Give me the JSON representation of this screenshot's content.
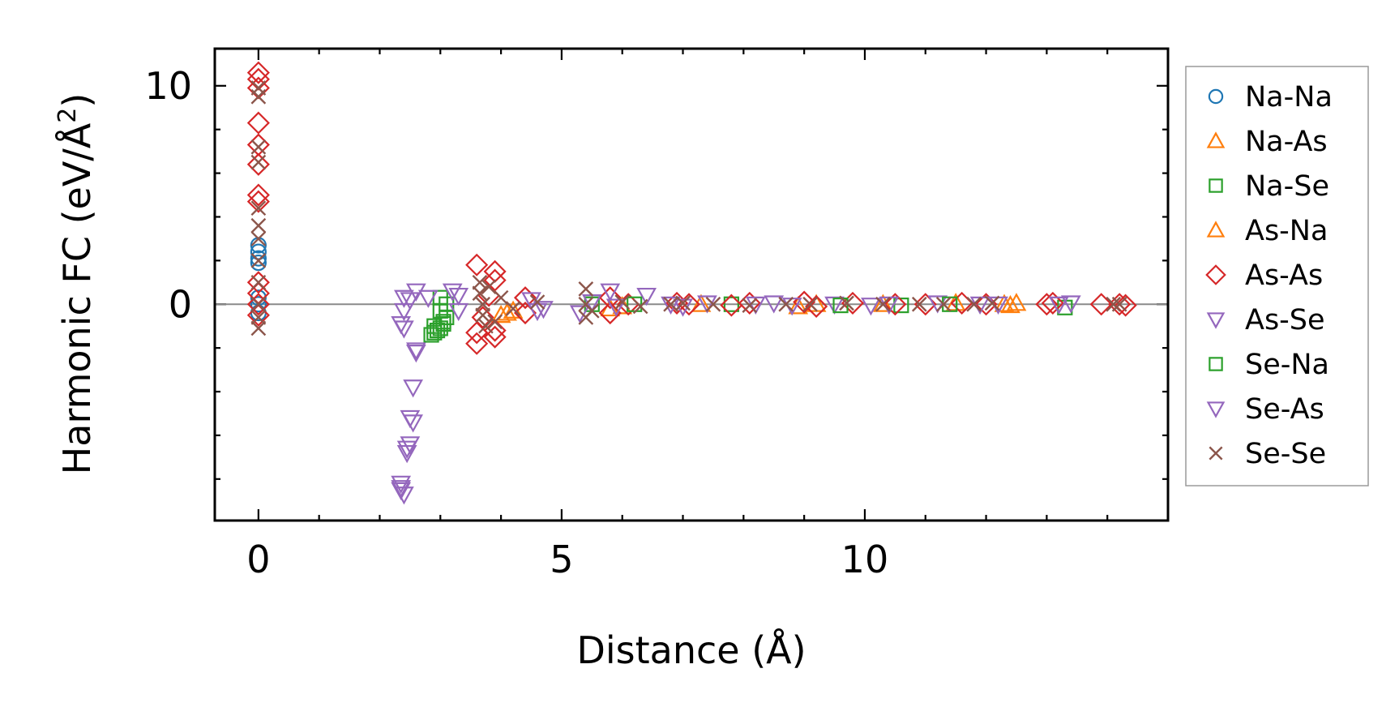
{
  "chart_data": {
    "type": "scatter",
    "title": "",
    "xlabel": "Distance (Å)",
    "ylabel_main": "Harmonic FC (eV/Å",
    "ylabel_sup": "2",
    "ylabel_close": ")",
    "xlim": [
      -0.72,
      15.0
    ],
    "ylim": [
      -9.9,
      11.7
    ],
    "x_ticks": [
      {
        "value": 0,
        "label": "0"
      },
      {
        "value": 5,
        "label": "5"
      },
      {
        "value": 10,
        "label": "10"
      }
    ],
    "y_ticks": [
      {
        "value": 0,
        "label": "0"
      },
      {
        "value": 10,
        "label": "10"
      }
    ],
    "x_minor_step": 1,
    "y_minor_step": 2,
    "zero_line": true,
    "legend_position": "outside-right",
    "grid": false,
    "series": [
      {
        "name": "Na-Na",
        "marker": "circle",
        "color": "#1f77b4",
        "points": [
          [
            0,
            2.7
          ],
          [
            0,
            2.4
          ],
          [
            0,
            2.1
          ],
          [
            0,
            1.9
          ],
          [
            0,
            0.0
          ],
          [
            0,
            0.3
          ],
          [
            0,
            -0.4
          ]
        ]
      },
      {
        "name": "Na-As",
        "marker": "triangle-up",
        "color": "#ff7f0e",
        "points": [
          [
            4.0,
            -0.5
          ],
          [
            4.2,
            -0.3
          ],
          [
            5.8,
            -0.2
          ],
          [
            7.3,
            0.0
          ],
          [
            8.9,
            -0.1
          ],
          [
            10.3,
            0.0
          ],
          [
            12.4,
            -0.05
          ],
          [
            12.5,
            0.05
          ]
        ]
      },
      {
        "name": "Na-Se",
        "marker": "square",
        "color": "#2ca02c",
        "points": [
          [
            2.85,
            -1.4
          ],
          [
            2.9,
            -1.3
          ],
          [
            2.95,
            -1.2
          ],
          [
            3.0,
            -1.1
          ],
          [
            3.05,
            -0.9
          ],
          [
            3.1,
            -0.6
          ],
          [
            3.0,
            -0.3
          ],
          [
            3.1,
            0.0
          ],
          [
            3.0,
            0.3
          ],
          [
            5.5,
            0.0
          ],
          [
            7.8,
            0.0
          ],
          [
            10.6,
            -0.05
          ],
          [
            13.3,
            -0.15
          ]
        ]
      },
      {
        "name": "As-Na",
        "marker": "triangle-up",
        "color": "#ff7f0e",
        "points": [
          [
            4.1,
            -0.4
          ],
          [
            6.0,
            -0.1
          ],
          [
            9.2,
            0.0
          ],
          [
            11.5,
            0.05
          ],
          [
            12.3,
            0.0
          ]
        ]
      },
      {
        "name": "As-As",
        "marker": "diamond",
        "color": "#d62728",
        "points": [
          [
            0,
            10.6
          ],
          [
            0,
            10.3
          ],
          [
            0,
            9.9
          ],
          [
            0,
            8.3
          ],
          [
            0,
            7.3
          ],
          [
            0,
            6.4
          ],
          [
            0,
            5.0
          ],
          [
            0,
            4.7
          ],
          [
            0,
            1.0
          ],
          [
            0,
            0.5
          ],
          [
            0,
            0.0
          ],
          [
            0,
            -0.5
          ],
          [
            3.6,
            1.8
          ],
          [
            3.6,
            -1.3
          ],
          [
            3.6,
            -1.8
          ],
          [
            3.9,
            1.5
          ],
          [
            3.9,
            1.1
          ],
          [
            3.9,
            -1.2
          ],
          [
            3.9,
            -1.5
          ],
          [
            3.8,
            0.4
          ],
          [
            3.7,
            -0.6
          ],
          [
            4.4,
            0.3
          ],
          [
            4.4,
            -0.4
          ],
          [
            5.8,
            0.3
          ],
          [
            5.8,
            -0.4
          ],
          [
            6.1,
            0.0
          ],
          [
            6.9,
            0.05
          ],
          [
            7.1,
            0.0
          ],
          [
            7.8,
            -0.05
          ],
          [
            8.1,
            0.05
          ],
          [
            9.0,
            0.1
          ],
          [
            9.2,
            -0.1
          ],
          [
            9.8,
            0.05
          ],
          [
            10.5,
            0.0
          ],
          [
            11.0,
            0.0
          ],
          [
            11.6,
            0.05
          ],
          [
            12.0,
            0.0
          ],
          [
            13.0,
            0.0
          ],
          [
            13.1,
            0.05
          ],
          [
            13.9,
            0.0
          ],
          [
            14.2,
            0.0
          ],
          [
            14.3,
            -0.05
          ]
        ]
      },
      {
        "name": "As-Se",
        "marker": "triangle-down",
        "color": "#9467bd",
        "points": [
          [
            2.35,
            -8.2
          ],
          [
            2.35,
            -8.5
          ],
          [
            2.4,
            -8.7
          ],
          [
            2.45,
            -6.6
          ],
          [
            2.5,
            -6.4
          ],
          [
            2.55,
            -5.4
          ],
          [
            2.55,
            -3.8
          ],
          [
            2.6,
            -2.1
          ],
          [
            2.4,
            -1.1
          ],
          [
            2.4,
            -0.3
          ],
          [
            2.4,
            0.3
          ],
          [
            2.6,
            0.6
          ],
          [
            2.8,
            0.3
          ],
          [
            3.2,
            0.6
          ],
          [
            3.3,
            -0.3
          ],
          [
            4.5,
            0.2
          ],
          [
            4.7,
            -0.2
          ],
          [
            5.3,
            -0.4
          ],
          [
            5.8,
            0.6
          ],
          [
            5.9,
            -0.1
          ],
          [
            6.4,
            0.4
          ],
          [
            7.0,
            -0.1
          ],
          [
            7.4,
            0.05
          ],
          [
            8.2,
            0.0
          ],
          [
            8.8,
            -0.05
          ],
          [
            9.5,
            0.0
          ],
          [
            10.4,
            0.0
          ],
          [
            11.2,
            0.05
          ],
          [
            11.9,
            0.0
          ],
          [
            13.2,
            0.0
          ],
          [
            13.4,
            0.05
          ]
        ]
      },
      {
        "name": "Se-Na",
        "marker": "square",
        "color": "#2ca02c",
        "points": [
          [
            2.9,
            -1.0
          ],
          [
            3.05,
            -0.8
          ],
          [
            6.2,
            0.0
          ],
          [
            9.6,
            -0.05
          ],
          [
            11.4,
            0.0
          ]
        ]
      },
      {
        "name": "Se-As",
        "marker": "triangle-down",
        "color": "#9467bd",
        "points": [
          [
            2.35,
            -8.4
          ],
          [
            2.45,
            -6.8
          ],
          [
            2.5,
            -5.2
          ],
          [
            2.6,
            -2.2
          ],
          [
            2.35,
            -0.9
          ],
          [
            2.5,
            0.2
          ],
          [
            3.3,
            0.4
          ],
          [
            4.6,
            -0.3
          ],
          [
            5.5,
            0.1
          ],
          [
            6.8,
            0.0
          ],
          [
            8.5,
            0.05
          ],
          [
            10.1,
            -0.05
          ],
          [
            12.2,
            0.0
          ]
        ]
      },
      {
        "name": "Se-Se",
        "marker": "x",
        "color": "#8c564b",
        "points": [
          [
            0,
            9.9
          ],
          [
            0,
            9.5
          ],
          [
            0,
            7.2
          ],
          [
            0,
            6.5
          ],
          [
            0,
            4.4
          ],
          [
            0,
            3.6
          ],
          [
            0,
            3.0
          ],
          [
            0,
            2.0
          ],
          [
            0,
            1.0
          ],
          [
            0,
            0.0
          ],
          [
            0,
            -0.6
          ],
          [
            0,
            -1.1
          ],
          [
            3.65,
            1.0
          ],
          [
            3.65,
            0.5
          ],
          [
            3.7,
            0.0
          ],
          [
            3.7,
            -0.5
          ],
          [
            3.75,
            -1.0
          ],
          [
            3.8,
            0.8
          ],
          [
            3.9,
            -0.8
          ],
          [
            4.0,
            0.3
          ],
          [
            4.2,
            -0.2
          ],
          [
            4.6,
            0.1
          ],
          [
            5.4,
            0.7
          ],
          [
            5.4,
            0.0
          ],
          [
            5.4,
            -0.6
          ],
          [
            5.5,
            -0.3
          ],
          [
            6.0,
            0.1
          ],
          [
            6.3,
            -0.1
          ],
          [
            6.8,
            0.0
          ],
          [
            7.0,
            0.05
          ],
          [
            7.5,
            0.0
          ],
          [
            8.1,
            -0.05
          ],
          [
            8.7,
            0.0
          ],
          [
            9.1,
            0.0
          ],
          [
            9.7,
            0.05
          ],
          [
            10.3,
            0.0
          ],
          [
            10.9,
            0.0
          ],
          [
            11.3,
            0.0
          ],
          [
            11.8,
            0.0
          ],
          [
            12.1,
            0.05
          ],
          [
            14.1,
            0.0
          ],
          [
            14.2,
            0.0
          ]
        ]
      }
    ]
  }
}
